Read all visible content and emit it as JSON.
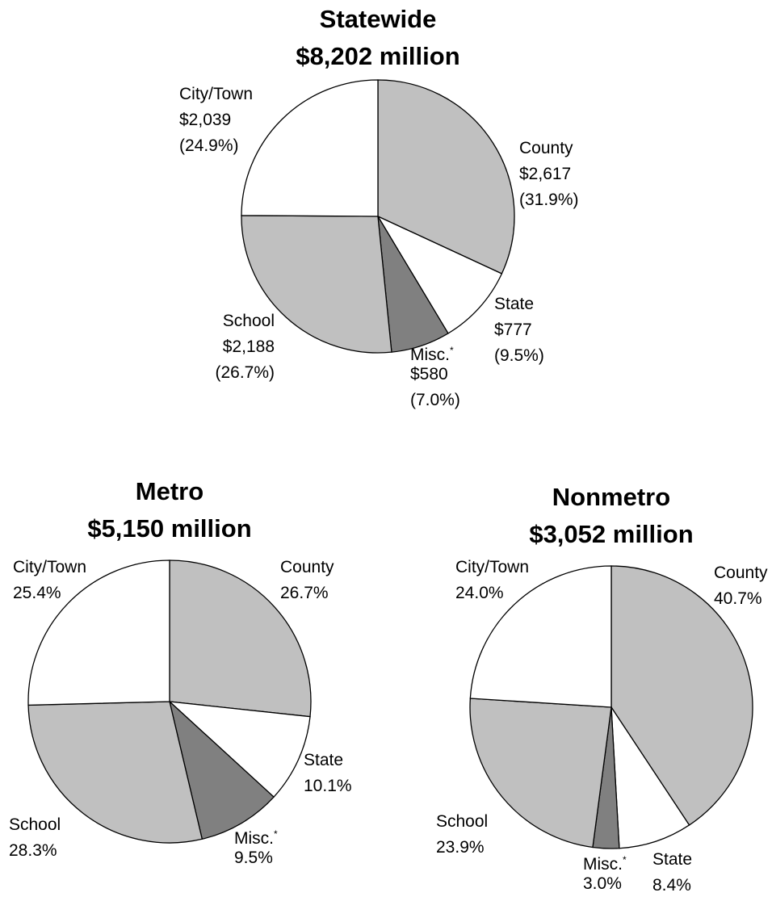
{
  "colors": {
    "County": "#c0c0c0",
    "State": "#ffffff",
    "Misc.": "#808080",
    "School": "#c0c0c0",
    "City/Town": "#ffffff"
  },
  "chart_data": [
    {
      "type": "pie",
      "title": "Statewide",
      "subtitle": "$8,202 million",
      "slices": [
        {
          "name": "County",
          "amount": "$2,617",
          "percent": "(31.9%)",
          "value": 31.9
        },
        {
          "name": "State",
          "amount": "$777",
          "percent": "(9.5%)",
          "value": 9.5
        },
        {
          "name": "Misc.",
          "footnote": "*",
          "amount": "$580",
          "percent": "(7.0%)",
          "value": 7.0
        },
        {
          "name": "School",
          "amount": "$2,188",
          "percent": "(26.7%)",
          "value": 26.7
        },
        {
          "name": "City/Town",
          "amount": "$2,039",
          "percent": "(24.9%)",
          "value": 24.9
        }
      ]
    },
    {
      "type": "pie",
      "title": "Metro",
      "subtitle": "$5,150 million",
      "slices": [
        {
          "name": "County",
          "percent": "26.7%",
          "value": 26.7
        },
        {
          "name": "State",
          "percent": "10.1%",
          "value": 10.1
        },
        {
          "name": "Misc.",
          "footnote": "*",
          "percent": "9.5%",
          "value": 9.5
        },
        {
          "name": "School",
          "percent": "28.3%",
          "value": 28.3
        },
        {
          "name": "City/Town",
          "percent": "25.4%",
          "value": 25.4
        }
      ]
    },
    {
      "type": "pie",
      "title": "Nonmetro",
      "subtitle": "$3,052 million",
      "slices": [
        {
          "name": "County",
          "percent": "40.7%",
          "value": 40.7
        },
        {
          "name": "State",
          "percent": "8.4%",
          "value": 8.4
        },
        {
          "name": "Misc.",
          "footnote": "*",
          "percent": "3.0%",
          "value": 3.0
        },
        {
          "name": "School",
          "percent": "23.9%",
          "value": 23.9
        },
        {
          "name": "City/Town",
          "percent": "24.0%",
          "value": 24.0
        }
      ]
    }
  ]
}
